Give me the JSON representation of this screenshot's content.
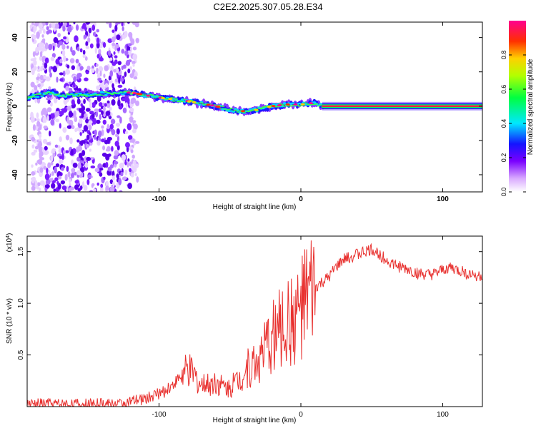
{
  "title": "C2E2.2025.307.05.28.E34",
  "chart_data": [
    {
      "type": "heatmap",
      "xlabel": "Height of straight line (km)",
      "ylabel": "Frequency (Hz)",
      "xlim": [
        -193,
        128
      ],
      "ylim": [
        -50,
        49
      ],
      "x_ticks": [
        -100,
        0,
        100
      ],
      "y_ticks": [
        -40,
        -20,
        0,
        20,
        40
      ],
      "ridge": {
        "description_x": [
          -193,
          -175,
          -170,
          -120,
          -100,
          -80,
          -60,
          -50,
          -40,
          -30,
          -20,
          -10,
          0,
          10,
          15,
          128
        ],
        "frequency_hz": [
          5,
          8,
          6,
          8,
          5,
          3,
          0,
          -2,
          -3,
          -2,
          0,
          1,
          1,
          2,
          0,
          0
        ]
      },
      "colorbar": {
        "label": "Normalized spectral amplitude",
        "range": [
          0,
          1
        ],
        "ticks": [
          0.0,
          0.2,
          0.4,
          0.6,
          0.8
        ],
        "tick_labels": [
          "0.0",
          "0.2",
          "0.4",
          "0.6",
          "0.8"
        ]
      }
    },
    {
      "type": "line",
      "xlabel": "Height of straight line (km)",
      "ylabel": "SNR (10 * v/v)",
      "scale_label": "(x10",
      "scale_exp": "4",
      "xlim": [
        -193,
        128
      ],
      "ylim": [
        0,
        1.65
      ],
      "x_ticks": [
        -100,
        0,
        100
      ],
      "y_ticks": [
        0.5,
        1.0,
        1.5
      ],
      "y_tick_labels": [
        "0.5",
        "1.0",
        "1.5"
      ],
      "color": "#e8302e",
      "series": [
        {
          "name": "SNR",
          "x": [
            -193,
            -180,
            -160,
            -140,
            -125,
            -115,
            -105,
            -95,
            -88,
            -80,
            -75,
            -70,
            -65,
            -60,
            -55,
            -50,
            -45,
            -40,
            -35,
            -30,
            -25,
            -20,
            -15,
            -10,
            -5,
            0,
            5,
            10,
            15,
            20,
            25,
            30,
            35,
            40,
            45,
            50,
            55,
            60,
            65,
            70,
            75,
            80,
            85,
            90,
            95,
            100,
            105,
            110,
            115,
            120,
            128
          ],
          "y": [
            0.02,
            0.03,
            0.02,
            0.02,
            0.03,
            0.06,
            0.1,
            0.15,
            0.25,
            0.35,
            0.3,
            0.2,
            0.22,
            0.25,
            0.2,
            0.18,
            0.25,
            0.35,
            0.4,
            0.45,
            0.55,
            0.7,
            0.75,
            0.8,
            0.85,
            0.95,
            1.05,
            1.15,
            1.2,
            1.25,
            1.35,
            1.42,
            1.45,
            1.48,
            1.5,
            1.52,
            1.48,
            1.42,
            1.38,
            1.35,
            1.33,
            1.3,
            1.28,
            1.27,
            1.28,
            1.32,
            1.35,
            1.32,
            1.3,
            1.28,
            1.26
          ]
        }
      ]
    }
  ]
}
